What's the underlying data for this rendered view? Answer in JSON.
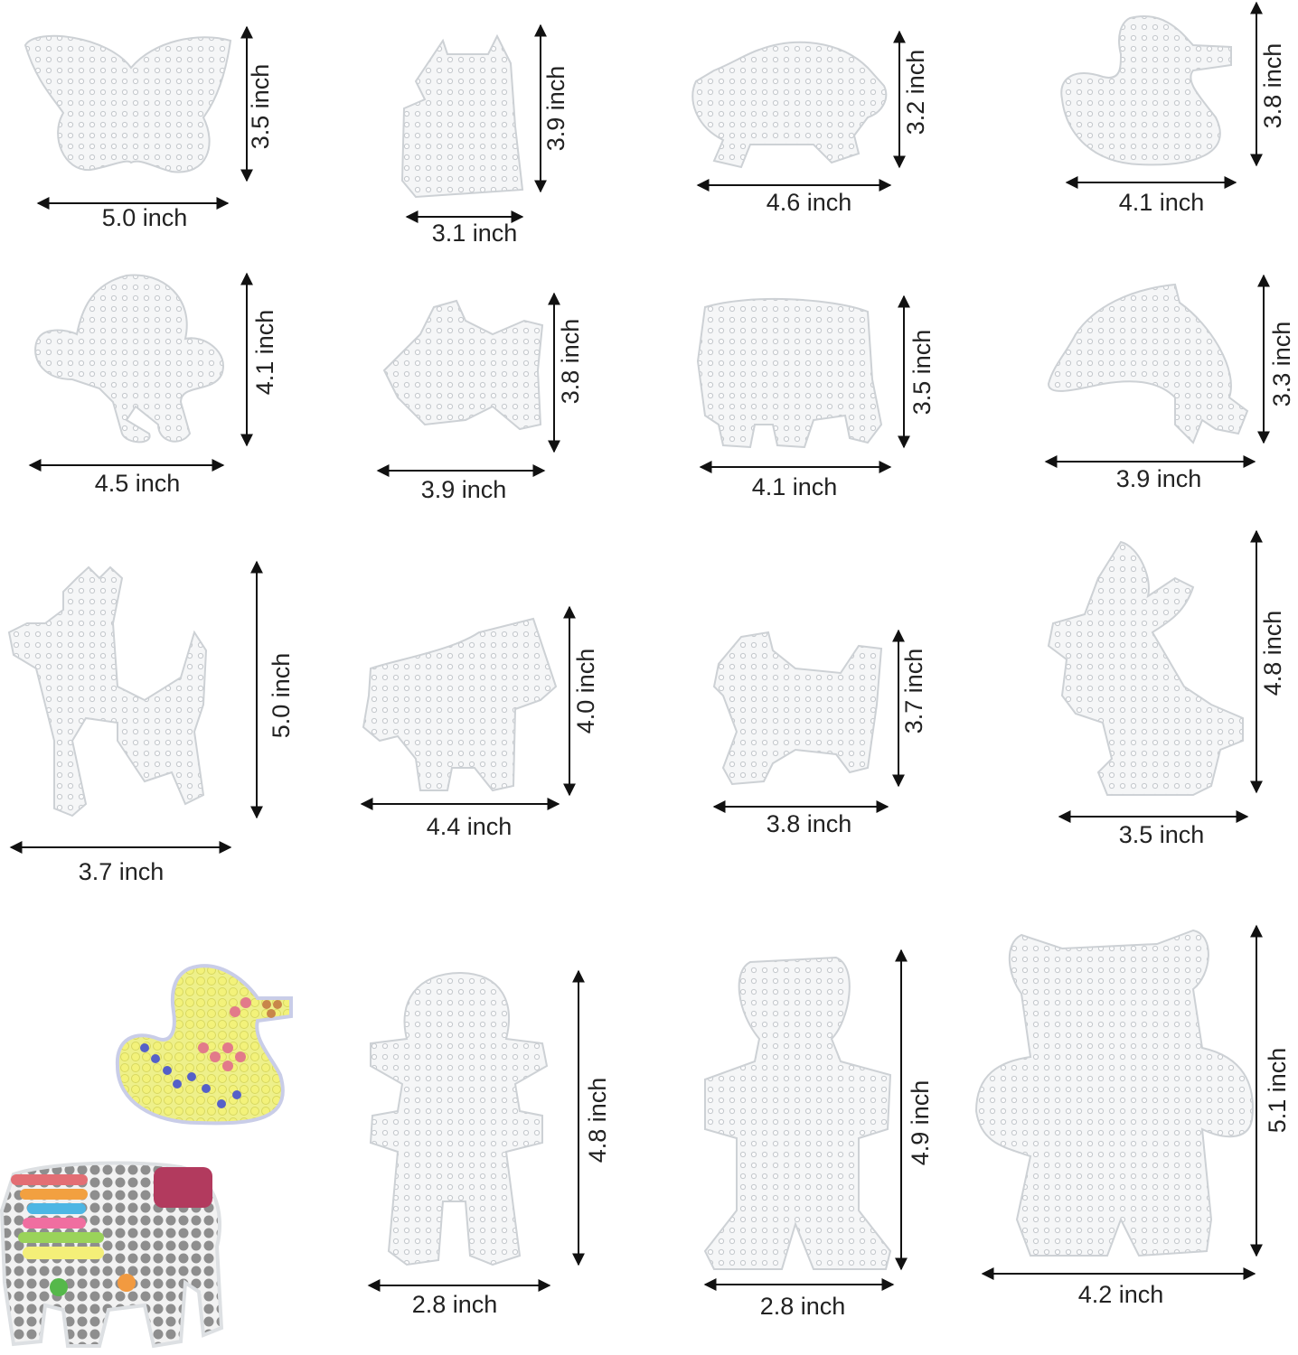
{
  "items": [
    {
      "width": "5.0 inch",
      "height": "3.5 inch"
    },
    {
      "width": "3.1 inch",
      "height": "3.9 inch"
    },
    {
      "width": "4.6 inch",
      "height": "3.2 inch"
    },
    {
      "width": "4.1 inch",
      "height": "3.8 inch"
    },
    {
      "width": "4.5 inch",
      "height": "4.1 inch"
    },
    {
      "width": "3.9 inch",
      "height": "3.8 inch"
    },
    {
      "width": "4.1 inch",
      "height": "3.5 inch"
    },
    {
      "width": "3.9 inch",
      "height": "3.3 inch"
    },
    {
      "width": "3.7 inch",
      "height": "5.0 inch"
    },
    {
      "width": "4.4 inch",
      "height": "4.0 inch"
    },
    {
      "width": "3.8 inch",
      "height": "3.7 inch"
    },
    {
      "width": "3.5 inch",
      "height": "4.8 inch"
    },
    {
      "width": "2.8 inch",
      "height": "4.8 inch"
    },
    {
      "width": "2.8 inch",
      "height": "4.9 inch"
    },
    {
      "width": "4.2 inch",
      "height": "5.1 inch"
    }
  ]
}
